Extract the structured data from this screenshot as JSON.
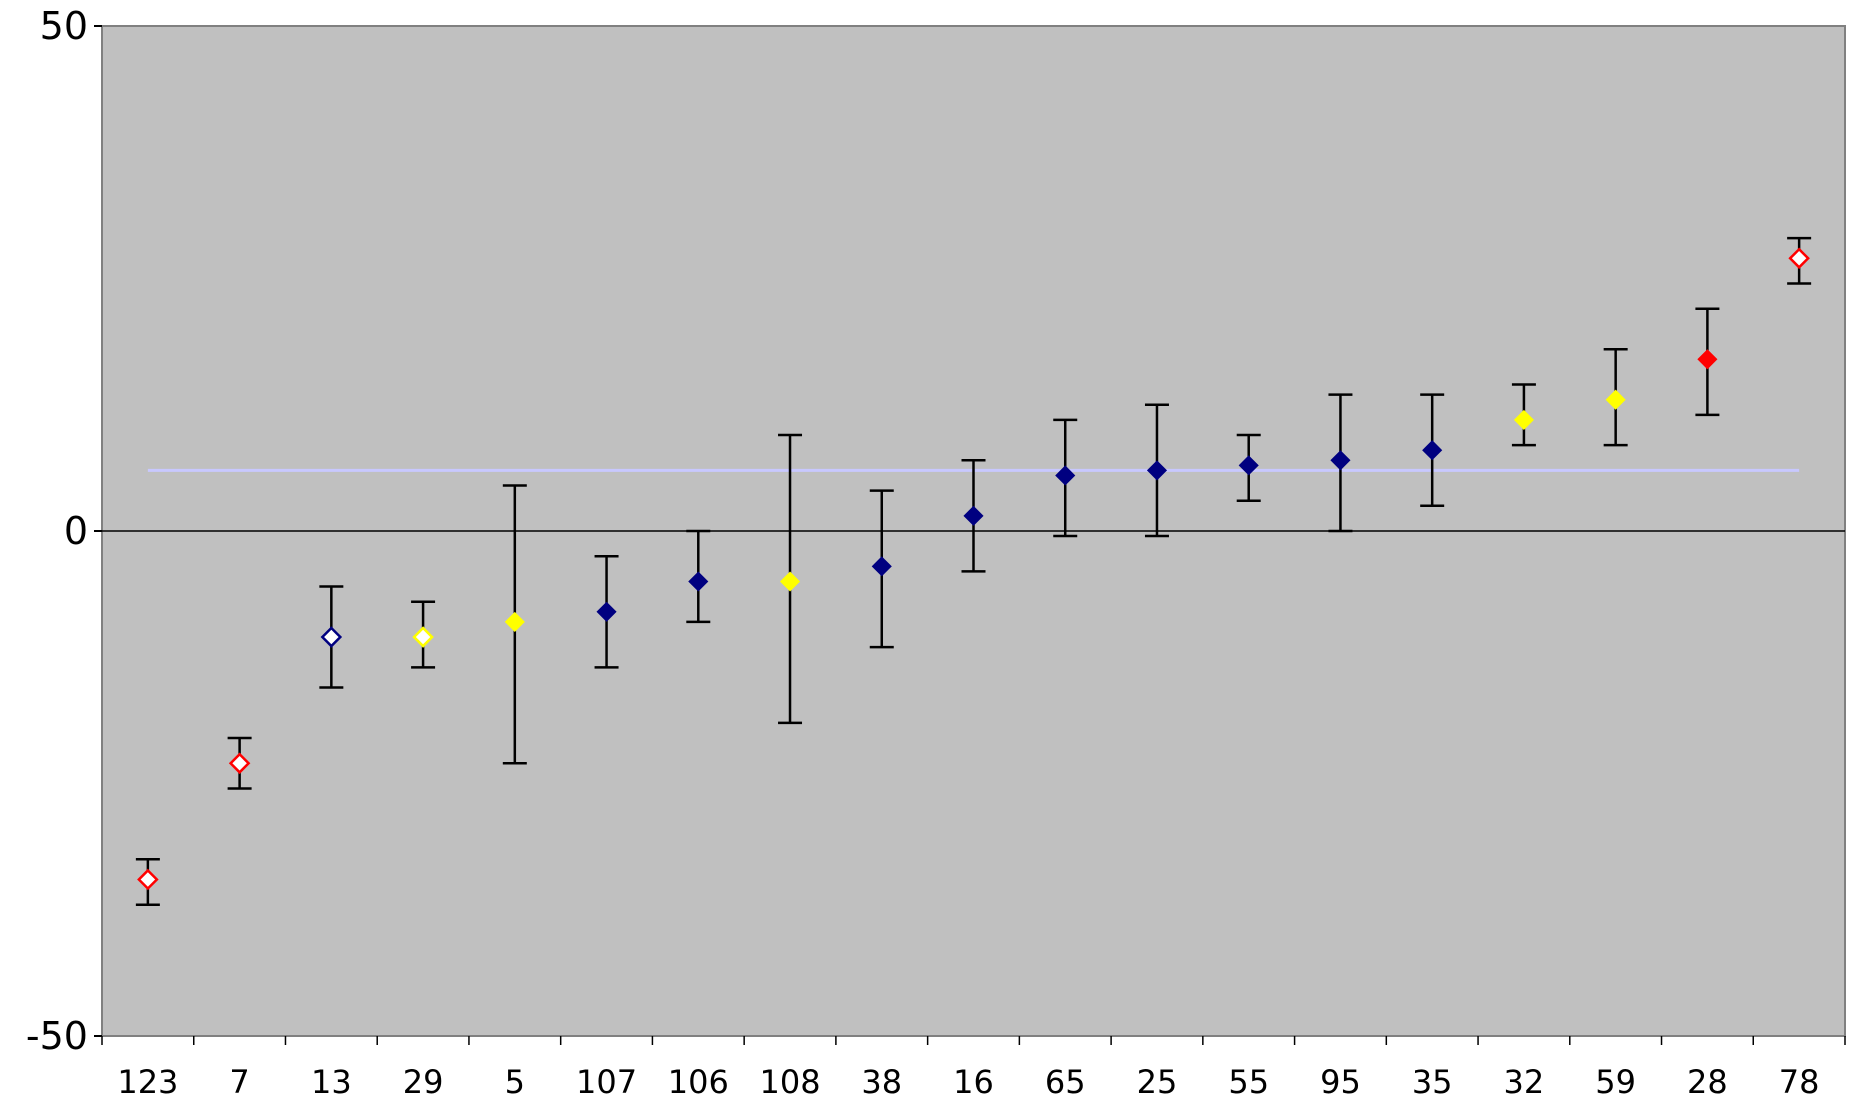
{
  "chart_data": {
    "type": "scatter",
    "title": "",
    "xlabel": "",
    "ylabel": "",
    "ylim": [
      -50,
      50
    ],
    "yticks": [
      "50",
      "0",
      "-50"
    ],
    "grid": false,
    "legend": "none",
    "plot_background": "#c0c0c0",
    "reference_line": {
      "y": 6,
      "color": "#c8c8ff"
    },
    "zero_line": {
      "y": 0,
      "color": "#000000"
    },
    "categories": [
      "123",
      "7",
      "13",
      "29",
      "5",
      "107",
      "106",
      "108",
      "38",
      "16",
      "65",
      "25",
      "55",
      "95",
      "35",
      "32",
      "59",
      "28",
      "78"
    ],
    "points": [
      {
        "value": -34.5,
        "low": -37,
        "high": -32.5,
        "color": "#ff0000",
        "fill": "hollow"
      },
      {
        "value": -23,
        "low": -25.5,
        "high": -20.5,
        "color": "#ff0000",
        "fill": "hollow"
      },
      {
        "value": -10.5,
        "low": -15.5,
        "high": -5.5,
        "color": "#000080",
        "fill": "hollow"
      },
      {
        "value": -10.5,
        "low": -13.5,
        "high": -7,
        "color": "#ffff00",
        "fill": "hollow"
      },
      {
        "value": -9,
        "low": -23,
        "high": 4.5,
        "color": "#ffff00",
        "fill": "solid"
      },
      {
        "value": -8,
        "low": -13.5,
        "high": -2.5,
        "color": "#000080",
        "fill": "solid"
      },
      {
        "value": -5,
        "low": -9,
        "high": 0,
        "color": "#000080",
        "fill": "solid"
      },
      {
        "value": -5,
        "low": -19,
        "high": 9.5,
        "color": "#ffff00",
        "fill": "solid"
      },
      {
        "value": -3.5,
        "low": -11.5,
        "high": 4,
        "color": "#000080",
        "fill": "solid"
      },
      {
        "value": 1.5,
        "low": -4,
        "high": 7,
        "color": "#000080",
        "fill": "solid"
      },
      {
        "value": 5.5,
        "low": -0.5,
        "high": 11,
        "color": "#000080",
        "fill": "solid"
      },
      {
        "value": 6,
        "low": -0.5,
        "high": 12.5,
        "color": "#000080",
        "fill": "solid"
      },
      {
        "value": 6.5,
        "low": 3,
        "high": 9.5,
        "color": "#000080",
        "fill": "solid"
      },
      {
        "value": 7,
        "low": 0,
        "high": 13.5,
        "color": "#000080",
        "fill": "solid"
      },
      {
        "value": 8,
        "low": 2.5,
        "high": 13.5,
        "color": "#000080",
        "fill": "solid"
      },
      {
        "value": 11,
        "low": 8.5,
        "high": 14.5,
        "color": "#ffff00",
        "fill": "solid"
      },
      {
        "value": 13,
        "low": 8.5,
        "high": 18,
        "color": "#ffff00",
        "fill": "solid"
      },
      {
        "value": 17,
        "low": 11.5,
        "high": 22,
        "color": "#ff0000",
        "fill": "solid"
      },
      {
        "value": 27,
        "low": 24.5,
        "high": 29,
        "color": "#ff0000",
        "fill": "hollow"
      }
    ]
  }
}
